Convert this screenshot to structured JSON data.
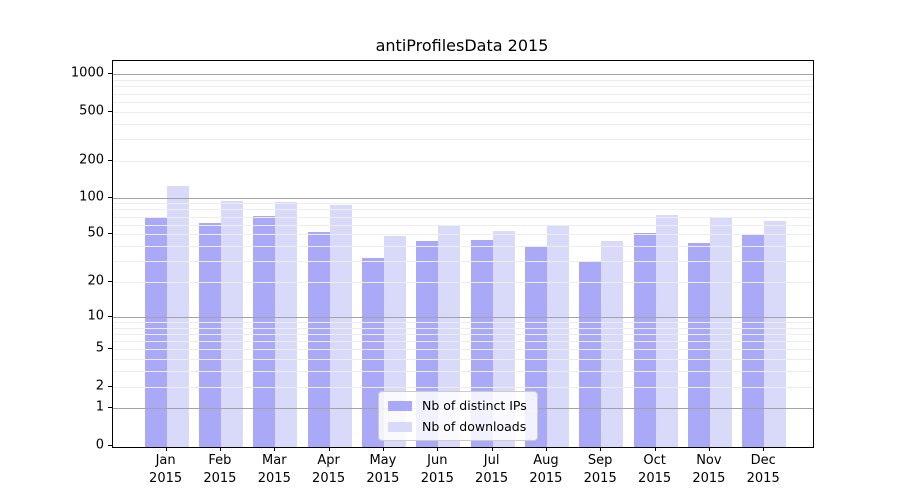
{
  "title": "antiProfilesData 2015",
  "chart_data": {
    "type": "bar",
    "title": "antiProfilesData 2015",
    "categories": [
      "Jan 2015",
      "Feb 2015",
      "Mar 2015",
      "Apr 2015",
      "May 2015",
      "Jun 2015",
      "Jul 2015",
      "Aug 2015",
      "Sep 2015",
      "Oct 2015",
      "Nov 2015",
      "Dec 2015"
    ],
    "x_tick_top_lines": [
      "Jan",
      "Feb",
      "Mar",
      "Apr",
      "May",
      "Jun",
      "Jul",
      "Aug",
      "Sep",
      "Oct",
      "Nov",
      "Dec"
    ],
    "x_tick_bottom_line": "2015",
    "series": [
      {
        "name": "Nb of distinct IPs",
        "color": "#a9a9f7",
        "values": [
          70,
          62,
          71,
          52,
          32,
          44,
          45,
          40,
          30,
          51,
          42,
          49
        ]
      },
      {
        "name": "Nb of downloads",
        "color": "#d9d9f9",
        "values": [
          125,
          93,
          92,
          87,
          48,
          60,
          53,
          60,
          44,
          72,
          69,
          64
        ]
      }
    ],
    "yscale": "log1p",
    "ylabel": "",
    "xlabel": "",
    "y_tick_values": [
      1000,
      500,
      200,
      100,
      50,
      20,
      10,
      5,
      2,
      1,
      0
    ],
    "y_major_gridlines": [
      1,
      10,
      100,
      1000
    ],
    "y_minor_gridlines": [
      2,
      3,
      4,
      5,
      6,
      7,
      8,
      9,
      20,
      30,
      40,
      50,
      60,
      70,
      80,
      90,
      200,
      300,
      400,
      500,
      600,
      700,
      800,
      900
    ],
    "ylim": [
      0,
      1200
    ],
    "grid": true,
    "legend_position": "lower center",
    "colors": {
      "bar_dark": "#a9a9f7",
      "bar_light": "#d9d9f9",
      "major_grid": "#a3a3a3",
      "minor_grid": "#ededed",
      "spine": "#000000",
      "background": "#ffffff"
    }
  }
}
